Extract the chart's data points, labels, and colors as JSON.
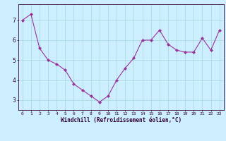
{
  "x": [
    0,
    1,
    2,
    3,
    4,
    5,
    6,
    7,
    8,
    9,
    10,
    11,
    12,
    13,
    14,
    15,
    16,
    17,
    18,
    19,
    20,
    21,
    22,
    23
  ],
  "y": [
    7.0,
    7.3,
    5.6,
    5.0,
    4.8,
    4.5,
    3.8,
    3.5,
    3.2,
    2.9,
    3.2,
    4.0,
    4.6,
    5.1,
    6.0,
    6.0,
    6.5,
    5.8,
    5.5,
    5.4,
    5.4,
    6.1,
    5.5,
    6.5
  ],
  "line_color": "#993399",
  "marker_color": "#993399",
  "bg_color": "#cceeff",
  "grid_color": "#aadddd",
  "axis_color": "#330033",
  "xlabel": "Windchill (Refroidissement éolien,°C)",
  "xlabel_color": "#330033",
  "tick_color": "#330033",
  "ylim": [
    2.5,
    7.8
  ],
  "yticks": [
    3,
    4,
    5,
    6,
    7
  ],
  "xlim": [
    -0.5,
    23.5
  ]
}
